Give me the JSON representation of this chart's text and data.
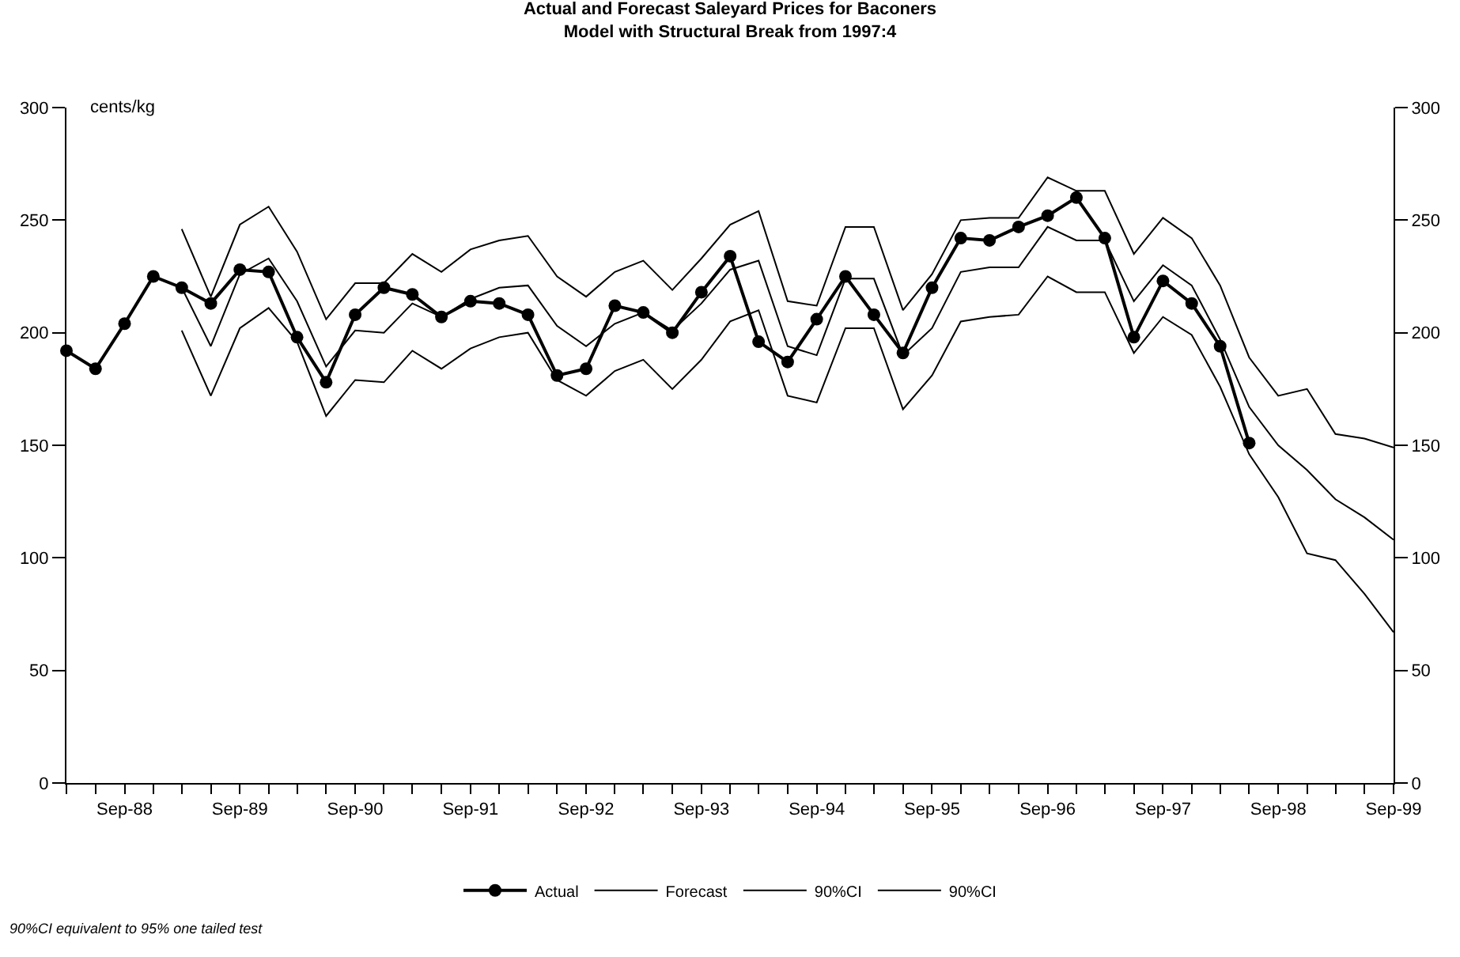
{
  "chart_data": {
    "type": "line",
    "title": "Actual and Forecast Saleyard Prices for Baconers",
    "subtitle": "Model with Structural Break from 1997:4",
    "ylabel": "cents/kg",
    "annotations": [
      "90%CI equivalent to 95% one tailed test"
    ],
    "x": [
      "1988-03",
      "1988-06",
      "1988-09",
      "1988-12",
      "1989-03",
      "1989-06",
      "1989-09",
      "1989-12",
      "1990-03",
      "1990-06",
      "1990-09",
      "1990-12",
      "1991-03",
      "1991-06",
      "1991-09",
      "1991-12",
      "1992-03",
      "1992-06",
      "1992-09",
      "1992-12",
      "1993-03",
      "1993-06",
      "1993-09",
      "1993-12",
      "1994-03",
      "1994-06",
      "1994-09",
      "1994-12",
      "1995-03",
      "1995-06",
      "1995-09",
      "1995-12",
      "1996-03",
      "1996-06",
      "1996-09",
      "1996-12",
      "1997-03",
      "1997-06",
      "1997-09",
      "1997-12",
      "1998-03",
      "1998-06",
      "1998-09",
      "1998-12",
      "1999-03",
      "1999-06",
      "1999-09"
    ],
    "series": [
      {
        "name": "Actual",
        "color": "#000000",
        "marker": "circle",
        "values": [
          192,
          184,
          204,
          225,
          220,
          213,
          228,
          227,
          198,
          178,
          208,
          220,
          217,
          207,
          214,
          213,
          208,
          181,
          184,
          212,
          209,
          200,
          218,
          234,
          196,
          187,
          206,
          225,
          208,
          191,
          220,
          242,
          241,
          247,
          252,
          260,
          242,
          198,
          223,
          213,
          194,
          151,
          null,
          null,
          null,
          null,
          null
        ]
      },
      {
        "name": "Forecast",
        "color": "#000000",
        "marker": "none",
        "values": [
          null,
          null,
          null,
          null,
          220,
          194,
          226,
          233,
          214,
          185,
          201,
          200,
          213,
          207,
          215,
          220,
          221,
          203,
          194,
          204,
          209,
          201,
          213,
          228,
          232,
          194,
          190,
          224,
          224,
          190,
          202,
          227,
          229,
          229,
          247,
          241,
          241,
          214,
          230,
          221,
          197,
          167,
          150,
          139,
          126,
          118,
          108
        ]
      },
      {
        "name": "90%CI",
        "color": "#000000",
        "marker": "none",
        "values": [
          null,
          null,
          null,
          null,
          246,
          216,
          248,
          256,
          236,
          206,
          222,
          222,
          235,
          227,
          237,
          241,
          243,
          225,
          216,
          227,
          232,
          219,
          233,
          248,
          254,
          214,
          212,
          247,
          247,
          210,
          226,
          250,
          251,
          251,
          269,
          263,
          263,
          235,
          251,
          242,
          221,
          189,
          172,
          175,
          155,
          153,
          149
        ]
      },
      {
        "name": "90%CI",
        "color": "#000000",
        "marker": "none",
        "values": [
          null,
          null,
          null,
          null,
          201,
          172,
          202,
          211,
          196,
          163,
          179,
          178,
          192,
          184,
          193,
          198,
          200,
          179,
          172,
          183,
          188,
          175,
          188,
          205,
          210,
          172,
          169,
          202,
          202,
          166,
          181,
          205,
          207,
          208,
          225,
          218,
          218,
          191,
          207,
          199,
          176,
          146,
          127,
          102,
          99,
          84,
          67
        ]
      }
    ],
    "xlim": [
      "1988-03",
      "1999-09"
    ],
    "xticks": [
      {
        "value": "1988-03",
        "label": null
      },
      {
        "value": "1988-06",
        "label": null
      },
      {
        "value": "1988-09",
        "label": "Sep-88"
      },
      {
        "value": "1988-12",
        "label": null
      },
      {
        "value": "1989-03",
        "label": null
      },
      {
        "value": "1989-06",
        "label": null
      },
      {
        "value": "1989-09",
        "label": "Sep-89"
      },
      {
        "value": "1989-12",
        "label": null
      },
      {
        "value": "1990-03",
        "label": null
      },
      {
        "value": "1990-06",
        "label": null
      },
      {
        "value": "1990-09",
        "label": "Sep-90"
      },
      {
        "value": "1990-12",
        "label": null
      },
      {
        "value": "1991-03",
        "label": null
      },
      {
        "value": "1991-06",
        "label": null
      },
      {
        "value": "1991-09",
        "label": "Sep-91"
      },
      {
        "value": "1991-12",
        "label": null
      },
      {
        "value": "1992-03",
        "label": null
      },
      {
        "value": "1992-06",
        "label": null
      },
      {
        "value": "1992-09",
        "label": "Sep-92"
      },
      {
        "value": "1992-12",
        "label": null
      },
      {
        "value": "1993-03",
        "label": null
      },
      {
        "value": "1993-06",
        "label": null
      },
      {
        "value": "1993-09",
        "label": "Sep-93"
      },
      {
        "value": "1993-12",
        "label": null
      },
      {
        "value": "1994-03",
        "label": null
      },
      {
        "value": "1994-06",
        "label": null
      },
      {
        "value": "1994-09",
        "label": "Sep-94"
      },
      {
        "value": "1994-12",
        "label": null
      },
      {
        "value": "1995-03",
        "label": null
      },
      {
        "value": "1995-06",
        "label": null
      },
      {
        "value": "1995-09",
        "label": "Sep-95"
      },
      {
        "value": "1995-12",
        "label": null
      },
      {
        "value": "1996-03",
        "label": null
      },
      {
        "value": "1996-06",
        "label": null
      },
      {
        "value": "1996-09",
        "label": "Sep-96"
      },
      {
        "value": "1996-12",
        "label": null
      },
      {
        "value": "1997-03",
        "label": null
      },
      {
        "value": "1997-06",
        "label": null
      },
      {
        "value": "1997-09",
        "label": "Sep-97"
      },
      {
        "value": "1997-12",
        "label": null
      },
      {
        "value": "1998-03",
        "label": null
      },
      {
        "value": "1998-06",
        "label": null
      },
      {
        "value": "1998-09",
        "label": "Sep-98"
      },
      {
        "value": "1998-12",
        "label": null
      },
      {
        "value": "1999-03",
        "label": null
      },
      {
        "value": "1999-06",
        "label": null
      },
      {
        "value": "1999-09",
        "label": "Sep-99"
      }
    ],
    "ylim": [
      0,
      300
    ],
    "yticks": [
      0,
      50,
      100,
      150,
      200,
      250,
      300
    ],
    "y2lim": [
      0,
      300
    ],
    "y2ticks": [
      0,
      50,
      100,
      150,
      200,
      250,
      300
    ],
    "grid": false,
    "legend": "bottom",
    "line_style": "solid"
  }
}
